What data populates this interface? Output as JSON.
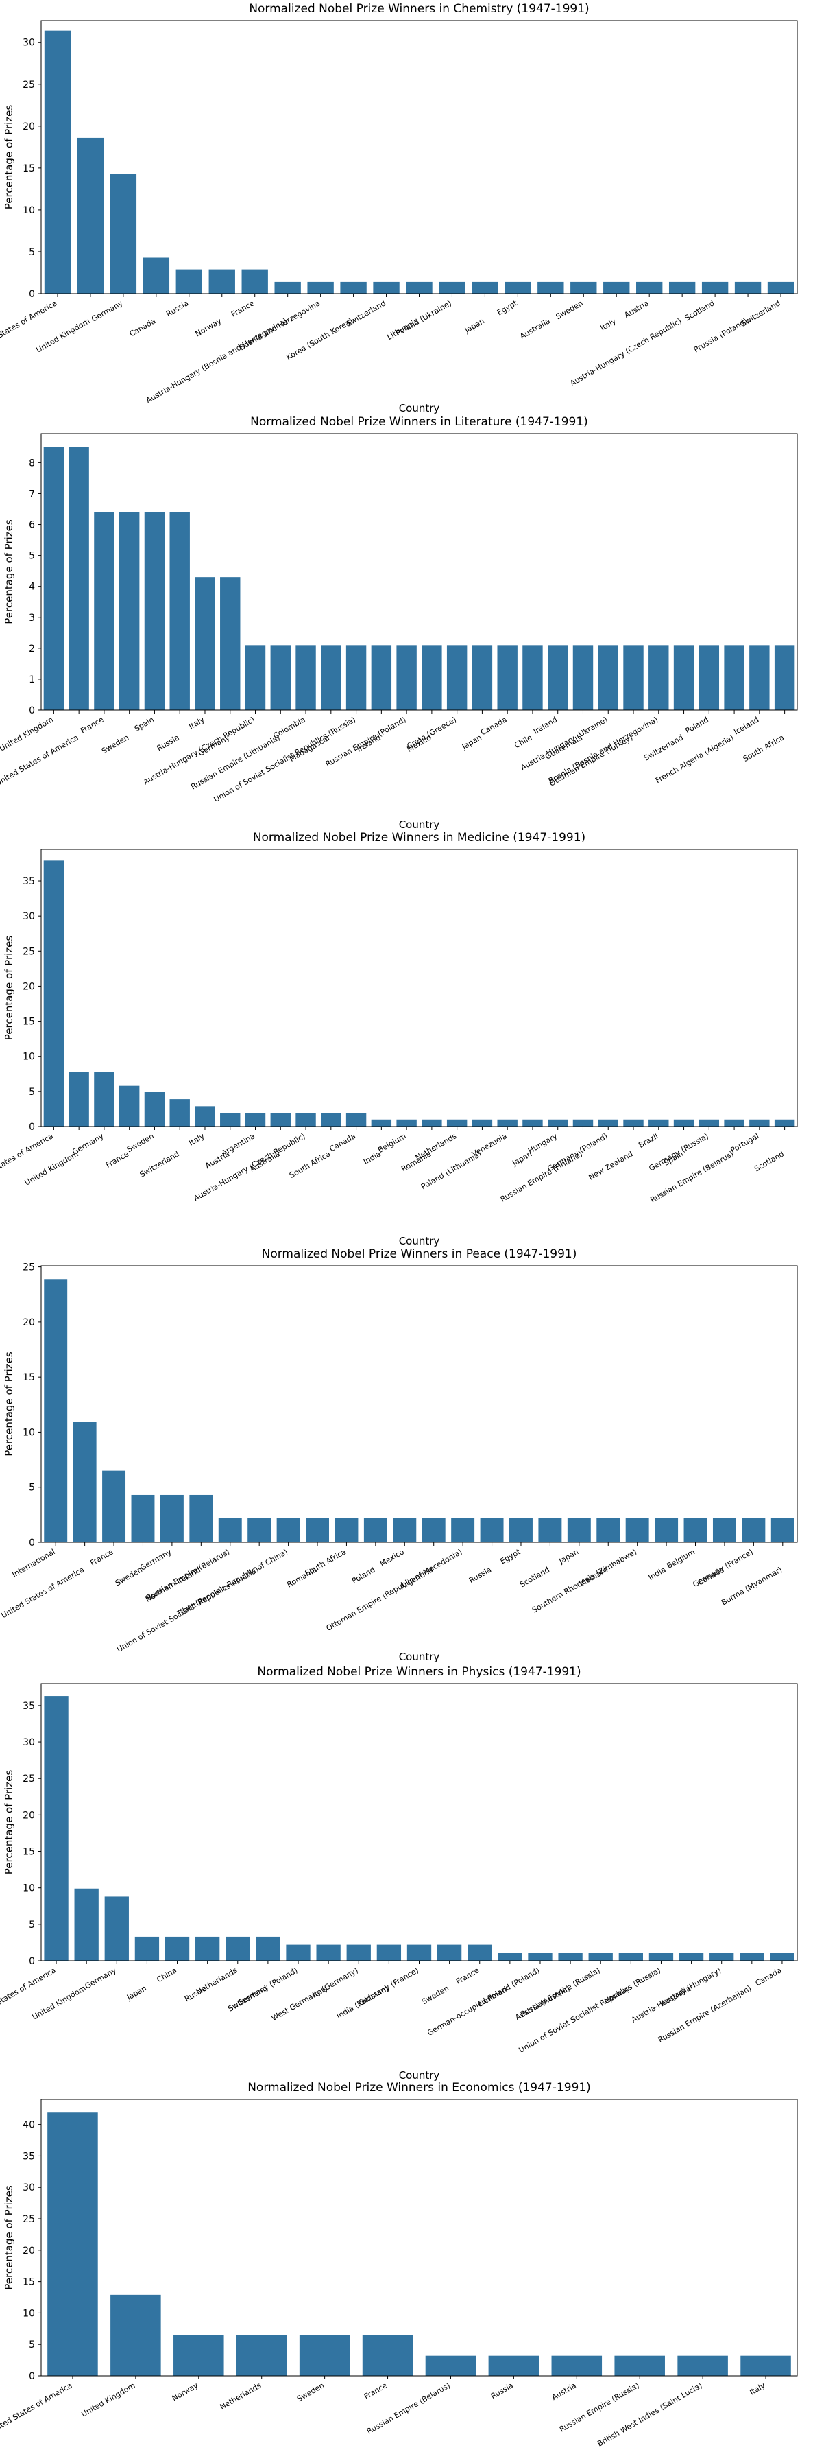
{
  "colors": {
    "bar": "#3274a1",
    "axis": "#000000",
    "background": "#ffffff"
  },
  "chart_data": [
    {
      "type": "bar",
      "title": "Normalized Nobel Prize Winners in Chemistry (1947-1991)",
      "xlabel": "Country",
      "ylabel": "Percentage of Prizes",
      "ylim": [
        0,
        32.6
      ],
      "yticks": [
        0,
        5,
        10,
        15,
        20,
        25,
        30
      ],
      "grid": false,
      "categories": [
        "United States of America",
        "United Kingdom",
        "Germany",
        "Canada",
        "Russia",
        "Norway",
        "France",
        "Austria-Hungary (Bosnia and Herzegovina)",
        "Bosnia and Herzegovina",
        "Korea (South Korea)",
        "Switzerland",
        "Lithuania",
        "Poland (Ukraine)",
        "Japan",
        "Egypt",
        "Australia",
        "Sweden",
        "Italy",
        "Austria",
        "Austria-Hungary (Czech Republic)",
        "Scotland",
        "Prussia (Poland)",
        "Switzerland"
      ],
      "values": [
        31.4,
        18.6,
        14.3,
        4.3,
        2.9,
        2.9,
        2.9,
        1.4,
        1.4,
        1.4,
        1.4,
        1.4,
        1.4,
        1.4,
        1.4,
        1.4,
        1.4,
        1.4,
        1.4,
        1.4,
        1.4,
        1.4,
        1.4
      ]
    },
    {
      "type": "bar",
      "title": "Normalized Nobel Prize Winners in Literature (1947-1991)",
      "xlabel": "Country",
      "ylabel": "Percentage of Prizes",
      "ylim": [
        0,
        8.94
      ],
      "yticks": [
        0,
        1,
        2,
        3,
        4,
        5,
        6,
        7,
        8
      ],
      "grid": false,
      "categories": [
        "United Kingdom",
        "United States of America",
        "France",
        "Sweden",
        "Spain",
        "Russia",
        "Italy",
        "Germany",
        "Austria-Hungary (Czech Republic)",
        "Russian Empire (Lithuania)",
        "Colombia",
        "Madagascar",
        "Union of Soviet Socialist Republics (Russia)",
        "Ireland",
        "Russian Empire (Poland)",
        "Mexico",
        "Crete (Greece)",
        "Japan",
        "Canada",
        "Chile",
        "Ireland",
        "Guatemala",
        "Austria-Hungary (Ukraine)",
        "Ottoman Empire (Turkey)",
        "Bosnia (Bosnia and Herzegovina)",
        "Switzerland",
        "Poland",
        "French Algeria (Algeria)",
        "Iceland",
        "South Africa"
      ],
      "values": [
        8.5,
        8.5,
        6.4,
        6.4,
        6.4,
        6.4,
        4.3,
        4.3,
        2.1,
        2.1,
        2.1,
        2.1,
        2.1,
        2.1,
        2.1,
        2.1,
        2.1,
        2.1,
        2.1,
        2.1,
        2.1,
        2.1,
        2.1,
        2.1,
        2.1,
        2.1,
        2.1,
        2.1,
        2.1,
        2.1
      ]
    },
    {
      "type": "bar",
      "title": "Normalized Nobel Prize Winners in Medicine (1947-1991)",
      "xlabel": "Country",
      "ylabel": "Percentage of Prizes",
      "ylim": [
        0,
        39.5
      ],
      "yticks": [
        0,
        5,
        10,
        15,
        20,
        25,
        30,
        35
      ],
      "grid": false,
      "categories": [
        "United States of America",
        "United Kingdom",
        "Germany",
        "France",
        "Sweden",
        "Switzerland",
        "Italy",
        "Austria",
        "Argentina",
        "Australia",
        "Austria-Hungary (Czech Republic)",
        "South Africa",
        "Canada",
        "India",
        "Belgium",
        "Romania",
        "Netherlands",
        "Poland (Lithuania)",
        "Venezuela",
        "Japan",
        "Hungary",
        "Russian Empire (Finland)",
        "Germany (Poland)",
        "New Zealand",
        "Brazil",
        "Spain",
        "Germany (Russia)",
        "Russian Empire (Belarus)",
        "Portugal",
        "Scotland"
      ],
      "values": [
        37.9,
        7.8,
        7.8,
        5.8,
        4.9,
        3.9,
        2.9,
        1.9,
        1.9,
        1.9,
        1.9,
        1.9,
        1.9,
        1.0,
        1.0,
        1.0,
        1.0,
        1.0,
        1.0,
        1.0,
        1.0,
        1.0,
        1.0,
        1.0,
        1.0,
        1.0,
        1.0,
        1.0,
        1.0,
        1.0
      ]
    },
    {
      "type": "bar",
      "title": "Normalized Nobel Prize Winners in Peace (1947-1991)",
      "xlabel": "Country",
      "ylabel": "Percentage of Prizes",
      "ylim": [
        0,
        25.1
      ],
      "yticks": [
        0,
        5,
        10,
        15,
        20,
        25
      ],
      "grid": false,
      "categories": [
        "International",
        "United States of America",
        "France",
        "Sweden",
        "Germany",
        "Northern Ireland",
        "Russian Empire (Belarus)",
        "Union of Soviet Socialist Republics (Russia)",
        "Tibet (People's Republic of China)",
        "Romania",
        "South Africa",
        "Poland",
        "Mexico",
        "Argentina",
        "Ottoman Empire (Republic of Macedonia)",
        "Russia",
        "Egypt",
        "Scotland",
        "Japan",
        "Vietnam",
        "Southern Rhodesia (Zimbabwe)",
        "India",
        "Belgium",
        "Canada",
        "Germany (France)",
        "Burma (Myanmar)"
      ],
      "values": [
        23.9,
        10.9,
        6.5,
        4.3,
        4.3,
        4.3,
        2.2,
        2.2,
        2.2,
        2.2,
        2.2,
        2.2,
        2.2,
        2.2,
        2.2,
        2.2,
        2.2,
        2.2,
        2.2,
        2.2,
        2.2,
        2.2,
        2.2,
        2.2,
        2.2,
        2.2
      ]
    },
    {
      "type": "bar",
      "title": "Normalized Nobel Prize Winners in Physics (1947-1991)",
      "xlabel": "Country",
      "ylabel": "Percentage of Prizes",
      "ylim": [
        0,
        38.0
      ],
      "yticks": [
        0,
        5,
        10,
        15,
        20,
        25,
        30,
        35
      ],
      "grid": false,
      "categories": [
        "United States of America",
        "United Kingdom",
        "Germany",
        "Japan",
        "China",
        "Russia",
        "Netherlands",
        "Switzerland",
        "Germany (Poland)",
        "Italy",
        "West Germany (Germany)",
        "India (Pakistan)",
        "Germany (France)",
        "Sweden",
        "France",
        "Denmark",
        "German-occupied Poland (Poland)",
        "Austria (Austria)",
        "Russian Empire (Russia)",
        "Norway",
        "Union of Soviet Socialist Republics (Russia)",
        "Australia",
        "Austria-Hungary (Hungary)",
        "Russian Empire (Azerbaijan)",
        "Canada"
      ],
      "values": [
        36.3,
        9.9,
        8.8,
        3.3,
        3.3,
        3.3,
        3.3,
        3.3,
        2.2,
        2.2,
        2.2,
        2.2,
        2.2,
        2.2,
        2.2,
        1.1,
        1.1,
        1.1,
        1.1,
        1.1,
        1.1,
        1.1,
        1.1,
        1.1,
        1.1
      ]
    },
    {
      "type": "bar",
      "title": "Normalized Nobel Prize Winners in Economics (1947-1991)",
      "xlabel": "Country",
      "ylabel": "Percentage of Prizes",
      "ylim": [
        0,
        44.0
      ],
      "yticks": [
        0,
        5,
        10,
        15,
        20,
        25,
        30,
        35,
        40
      ],
      "grid": false,
      "categories": [
        "United States of America",
        "United Kingdom",
        "Norway",
        "Netherlands",
        "Sweden",
        "France",
        "Russian Empire (Belarus)",
        "Russia",
        "Austria",
        "Russian Empire (Russia)",
        "British West Indies (Saint Lucia)",
        "Italy"
      ],
      "values": [
        41.9,
        12.9,
        6.5,
        6.5,
        6.5,
        6.5,
        3.2,
        3.2,
        3.2,
        3.2,
        3.2,
        3.2
      ]
    }
  ]
}
